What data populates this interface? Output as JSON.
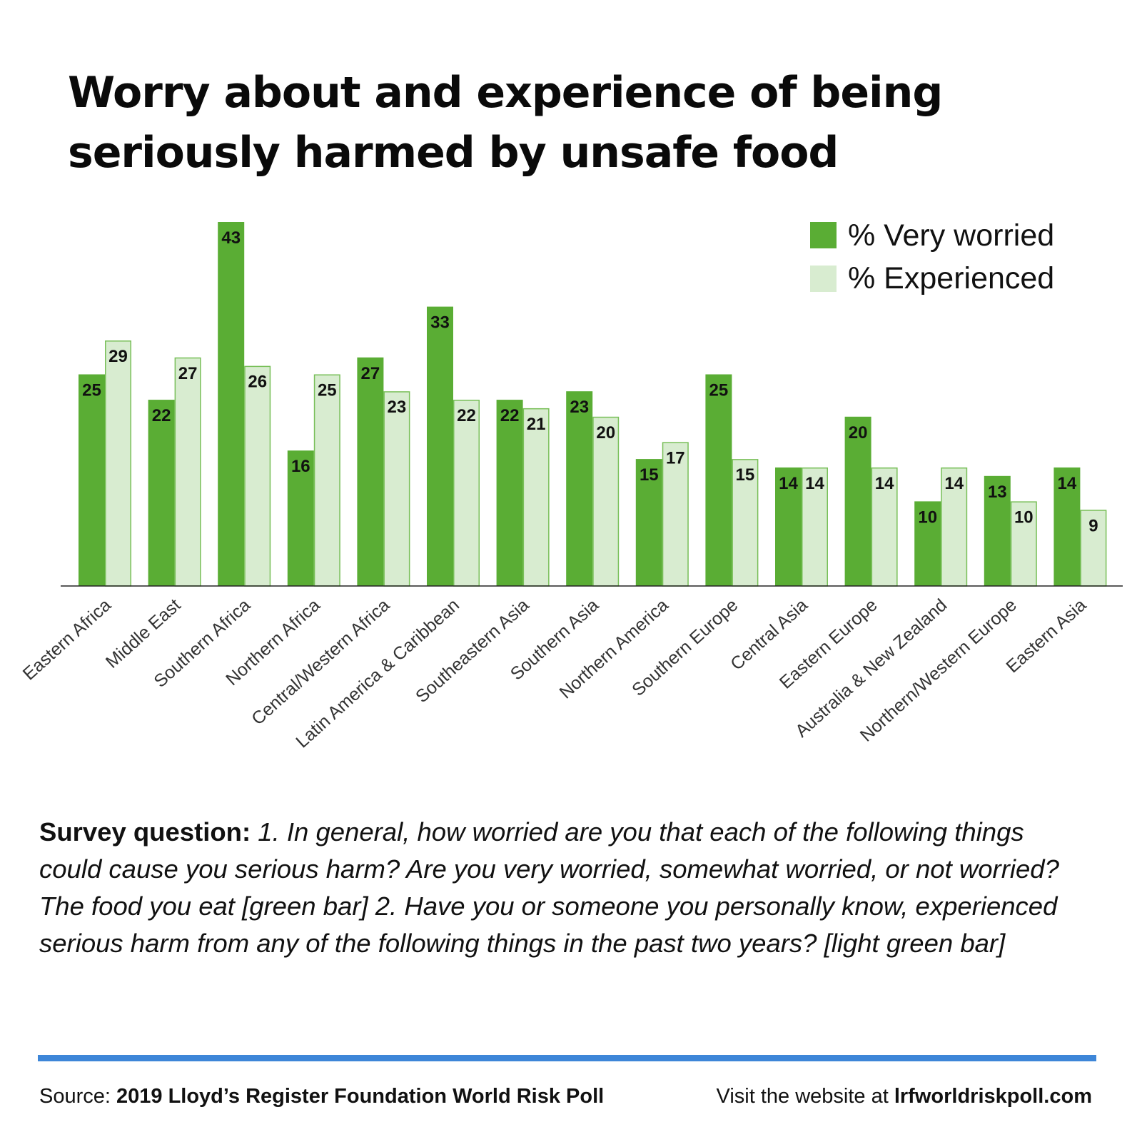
{
  "title": "Worry about and experience of being seriously harmed by unsafe food",
  "chart_data": {
    "type": "bar",
    "title": "Worry about and experience of being seriously harmed by unsafe food",
    "xlabel": "",
    "ylabel": "",
    "ylim": [
      0,
      43
    ],
    "grid": false,
    "legend_position": "top-right",
    "categories": [
      "Eastern Africa",
      "Middle East",
      "Southern Africa",
      "Northern Africa",
      "Central/Western Africa",
      "Latin America & Caribbean",
      "Southeastern Asia",
      "Southern Asia",
      "Northern America",
      "Southern Europe",
      "Central Asia",
      "Eastern Europe",
      "Australia & New Zealand",
      "Northern/Western Europe",
      "Eastern Asia"
    ],
    "series": [
      {
        "name": "% Very worried",
        "color": "#5aad34",
        "values": [
          25,
          22,
          43,
          16,
          27,
          33,
          22,
          23,
          15,
          25,
          14,
          20,
          10,
          13,
          14
        ]
      },
      {
        "name": "% Experienced",
        "color": "#d8ecd0",
        "stroke": "#78bf58",
        "values": [
          29,
          27,
          26,
          25,
          23,
          22,
          21,
          20,
          17,
          15,
          14,
          14,
          14,
          10,
          9
        ]
      }
    ]
  },
  "survey": {
    "label": "Survey question:",
    "text": "1. In general, how worried are you that each of the following things could cause you serious harm? Are you very worried, somewhat worried, or not worried? The food you eat [green bar] 2. Have you or someone you personally know, experienced serious harm from any of the following things in the past two years? [light green bar]"
  },
  "footer": {
    "source_prefix": "Source: ",
    "source_name": "2019 Lloyd’s Register Foundation World Risk Poll",
    "website_prefix": "Visit the website at ",
    "website_url": "lrfworldriskpoll.com"
  },
  "colors": {
    "accent_rule": "#3d86d8",
    "worried_bar": "#5aad34",
    "experienced_bar": "#d8ecd0"
  }
}
